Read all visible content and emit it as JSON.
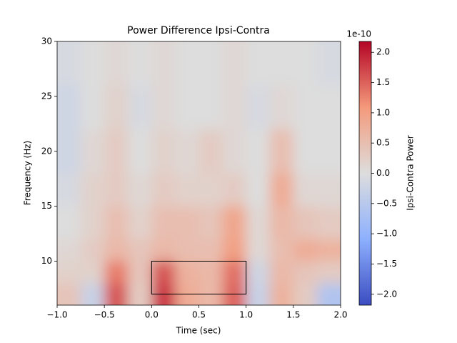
{
  "chart_data": {
    "type": "heatmap",
    "title": "Power Difference Ipsi-Contra",
    "xlabel": "Time (sec)",
    "ylabel": "Frequency (Hz)",
    "xlim": [
      -1,
      2
    ],
    "ylim": [
      6,
      30
    ],
    "xticks": [
      {
        "value": -1,
        "label": "−1.0"
      },
      {
        "value": -0.5,
        "label": "−0.5"
      },
      {
        "value": 0,
        "label": "0.0"
      },
      {
        "value": 0.5,
        "label": "0.5"
      },
      {
        "value": 1,
        "label": "1.0"
      },
      {
        "value": 1.5,
        "label": "1.5"
      },
      {
        "value": 2,
        "label": "2.0"
      }
    ],
    "yticks": [
      10,
      15,
      20,
      25,
      30
    ],
    "x_edges": [
      -1,
      -0.75,
      -0.5,
      -0.25,
      0,
      0.25,
      0.5,
      0.75,
      1,
      1.25,
      1.5,
      1.75,
      2
    ],
    "y_edges": [
      6,
      8,
      10,
      12,
      15,
      18,
      22,
      26,
      30
    ],
    "z": [
      [
        0.4,
        -0.3,
        1.6,
        0.3,
        1.8,
        0.8,
        0.6,
        1.5,
        -0.3,
        0.7,
        0.3,
        -0.6
      ],
      [
        0.2,
        0.2,
        1.3,
        0.4,
        1.6,
        0.7,
        0.6,
        1.4,
        -0.2,
        0.6,
        0.4,
        0.3
      ],
      [
        0.1,
        0.3,
        0.6,
        0.4,
        0.6,
        0.5,
        0.5,
        1.0,
        0.1,
        0.5,
        0.8,
        0.7
      ],
      [
        0,
        0.2,
        0.5,
        0.2,
        0.5,
        0.5,
        0.4,
        0.9,
        0.1,
        0.6,
        0.4,
        0.3
      ],
      [
        -0.1,
        0.2,
        0.3,
        0.1,
        0.3,
        0.2,
        0.2,
        0.3,
        0,
        0.8,
        0.1,
        0.1
      ],
      [
        -0.2,
        0.1,
        0.3,
        0,
        0.2,
        0.1,
        0.3,
        0.1,
        0,
        0.5,
        0,
        0
      ],
      [
        -0.2,
        0,
        0.2,
        -0.1,
        0.1,
        0,
        0,
        0.1,
        -0.1,
        0.1,
        0,
        0
      ],
      [
        -0.1,
        0,
        0.1,
        0,
        0.1,
        0,
        0,
        0.1,
        0,
        0,
        0,
        -0.1
      ]
    ],
    "colormap": "coolwarm",
    "clim": [
      -2.18,
      2.18
    ],
    "colorbar_label": "Ipsi-Contra Power",
    "colorbar_offset": "1e-10",
    "colorbar_ticks": [
      {
        "value": -2,
        "label": "−2.0"
      },
      {
        "value": -1.5,
        "label": "−1.5"
      },
      {
        "value": -1,
        "label": "−1.0"
      },
      {
        "value": -0.5,
        "label": "−0.5"
      },
      {
        "value": 0,
        "label": "0.0"
      },
      {
        "value": 0.5,
        "label": "0.5"
      },
      {
        "value": 1,
        "label": "1.0"
      },
      {
        "value": 1.5,
        "label": "1.5"
      },
      {
        "value": 2,
        "label": "2.0"
      }
    ],
    "rectangle": {
      "x": [
        0,
        1
      ],
      "y": [
        7,
        10
      ],
      "color": "#000000"
    }
  }
}
